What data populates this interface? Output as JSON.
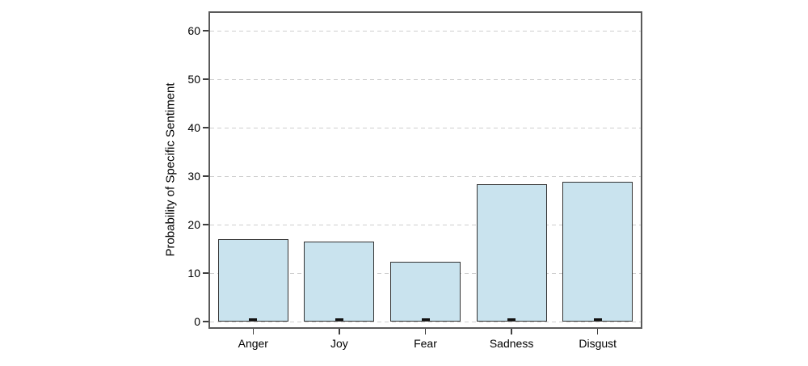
{
  "chart_data": {
    "type": "bar",
    "title": "",
    "categories": [
      "Anger",
      "Joy",
      "Fear",
      "Sadness",
      "Disgust"
    ],
    "values": [
      17.0,
      16.5,
      12.3,
      28.3,
      28.8
    ],
    "base_marks": {
      "present": true,
      "at_value": 0,
      "description": "small dark cap centered at each bar base on the zero line"
    },
    "xlabel": "",
    "ylabel": "Probability of Specific Sentiment",
    "ylim": [
      0,
      63.7
    ],
    "yticks": [
      0,
      10,
      20,
      30,
      40,
      50,
      60
    ],
    "grid": "horizontal-dashed",
    "legend": "none",
    "colors": {
      "background": "#ffffff",
      "bar_fill": "#c9e3ee",
      "bar_border": "#333333",
      "plot_border": "#5a5a5a",
      "gridline": "#cfcfcf",
      "tick": "#3f3f3f",
      "text": "#000000",
      "base_mark": "#111111"
    }
  }
}
